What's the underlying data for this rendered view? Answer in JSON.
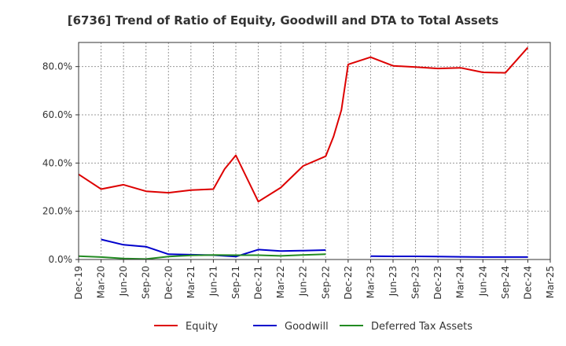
{
  "chart_data": {
    "type": "line",
    "title": "[6736]  Trend of Ratio of Equity, Goodwill and DTA to Total Assets",
    "xlabel": "",
    "ylabel": "",
    "ylim": [
      0,
      90
    ],
    "y_ticks": [
      0,
      20,
      40,
      60,
      80
    ],
    "y_tick_labels": [
      "0.0%",
      "20.0%",
      "40.0%",
      "60.0%",
      "80.0%"
    ],
    "x_tick_labels": [
      "Dec-19",
      "Mar-20",
      "Jun-20",
      "Sep-20",
      "Dec-20",
      "Mar-21",
      "Jun-21",
      "Sep-21",
      "Dec-21",
      "Mar-22",
      "Jun-22",
      "Sep-22",
      "Dec-22",
      "Mar-23",
      "Jun-23",
      "Sep-23",
      "Dec-23",
      "Mar-24",
      "Jun-24",
      "Sep-24",
      "Dec-24",
      "Mar-25"
    ],
    "grid": true,
    "legend_position": "bottom",
    "series": [
      {
        "name": "Equity",
        "color": "#dd0000",
        "points": [
          [
            0,
            35.3
          ],
          [
            1,
            29.2
          ],
          [
            2,
            31.0
          ],
          [
            3,
            28.3
          ],
          [
            4,
            27.7
          ],
          [
            5,
            28.8
          ],
          [
            6,
            29.2
          ],
          [
            6.5,
            37.5
          ],
          [
            7,
            43.2
          ],
          [
            8,
            24.0
          ],
          [
            9,
            29.8
          ],
          [
            10,
            38.8
          ],
          [
            11,
            42.8
          ],
          [
            11.35,
            51.0
          ],
          [
            11.7,
            62.0
          ],
          [
            12,
            80.9
          ],
          [
            13,
            83.9
          ],
          [
            14,
            80.3
          ],
          [
            15,
            79.8
          ],
          [
            16,
            79.2
          ],
          [
            17,
            79.5
          ],
          [
            18,
            77.6
          ],
          [
            19,
            77.4
          ],
          [
            20,
            87.9
          ]
        ]
      },
      {
        "name": "Goodwill",
        "color": "#0000cc",
        "points": [
          [
            1,
            8.3
          ],
          [
            2,
            6.1
          ],
          [
            3,
            5.3
          ],
          [
            4,
            2.2
          ],
          [
            5,
            2.0
          ],
          [
            6,
            1.8
          ],
          [
            7,
            1.2
          ],
          [
            8,
            4.1
          ],
          [
            9,
            3.5
          ],
          [
            10,
            3.7
          ],
          [
            11,
            3.9
          ],
          null,
          [
            13,
            1.4
          ],
          [
            14,
            1.3
          ],
          [
            15,
            1.3
          ],
          [
            16,
            1.2
          ],
          [
            17,
            1.1
          ],
          [
            18,
            1.0
          ],
          [
            19,
            1.0
          ],
          [
            20,
            1.0
          ]
        ]
      },
      {
        "name": "Deferred Tax Assets",
        "color": "#228b22",
        "points": [
          [
            0,
            1.4
          ],
          [
            1,
            1.0
          ],
          [
            2,
            0.4
          ],
          [
            3,
            0.2
          ],
          [
            4,
            1.2
          ],
          [
            5,
            1.7
          ],
          [
            6,
            1.9
          ],
          [
            7,
            1.8
          ],
          [
            8,
            1.8
          ],
          [
            9,
            1.5
          ],
          [
            10,
            1.9
          ],
          [
            11,
            2.2
          ]
        ]
      }
    ]
  }
}
